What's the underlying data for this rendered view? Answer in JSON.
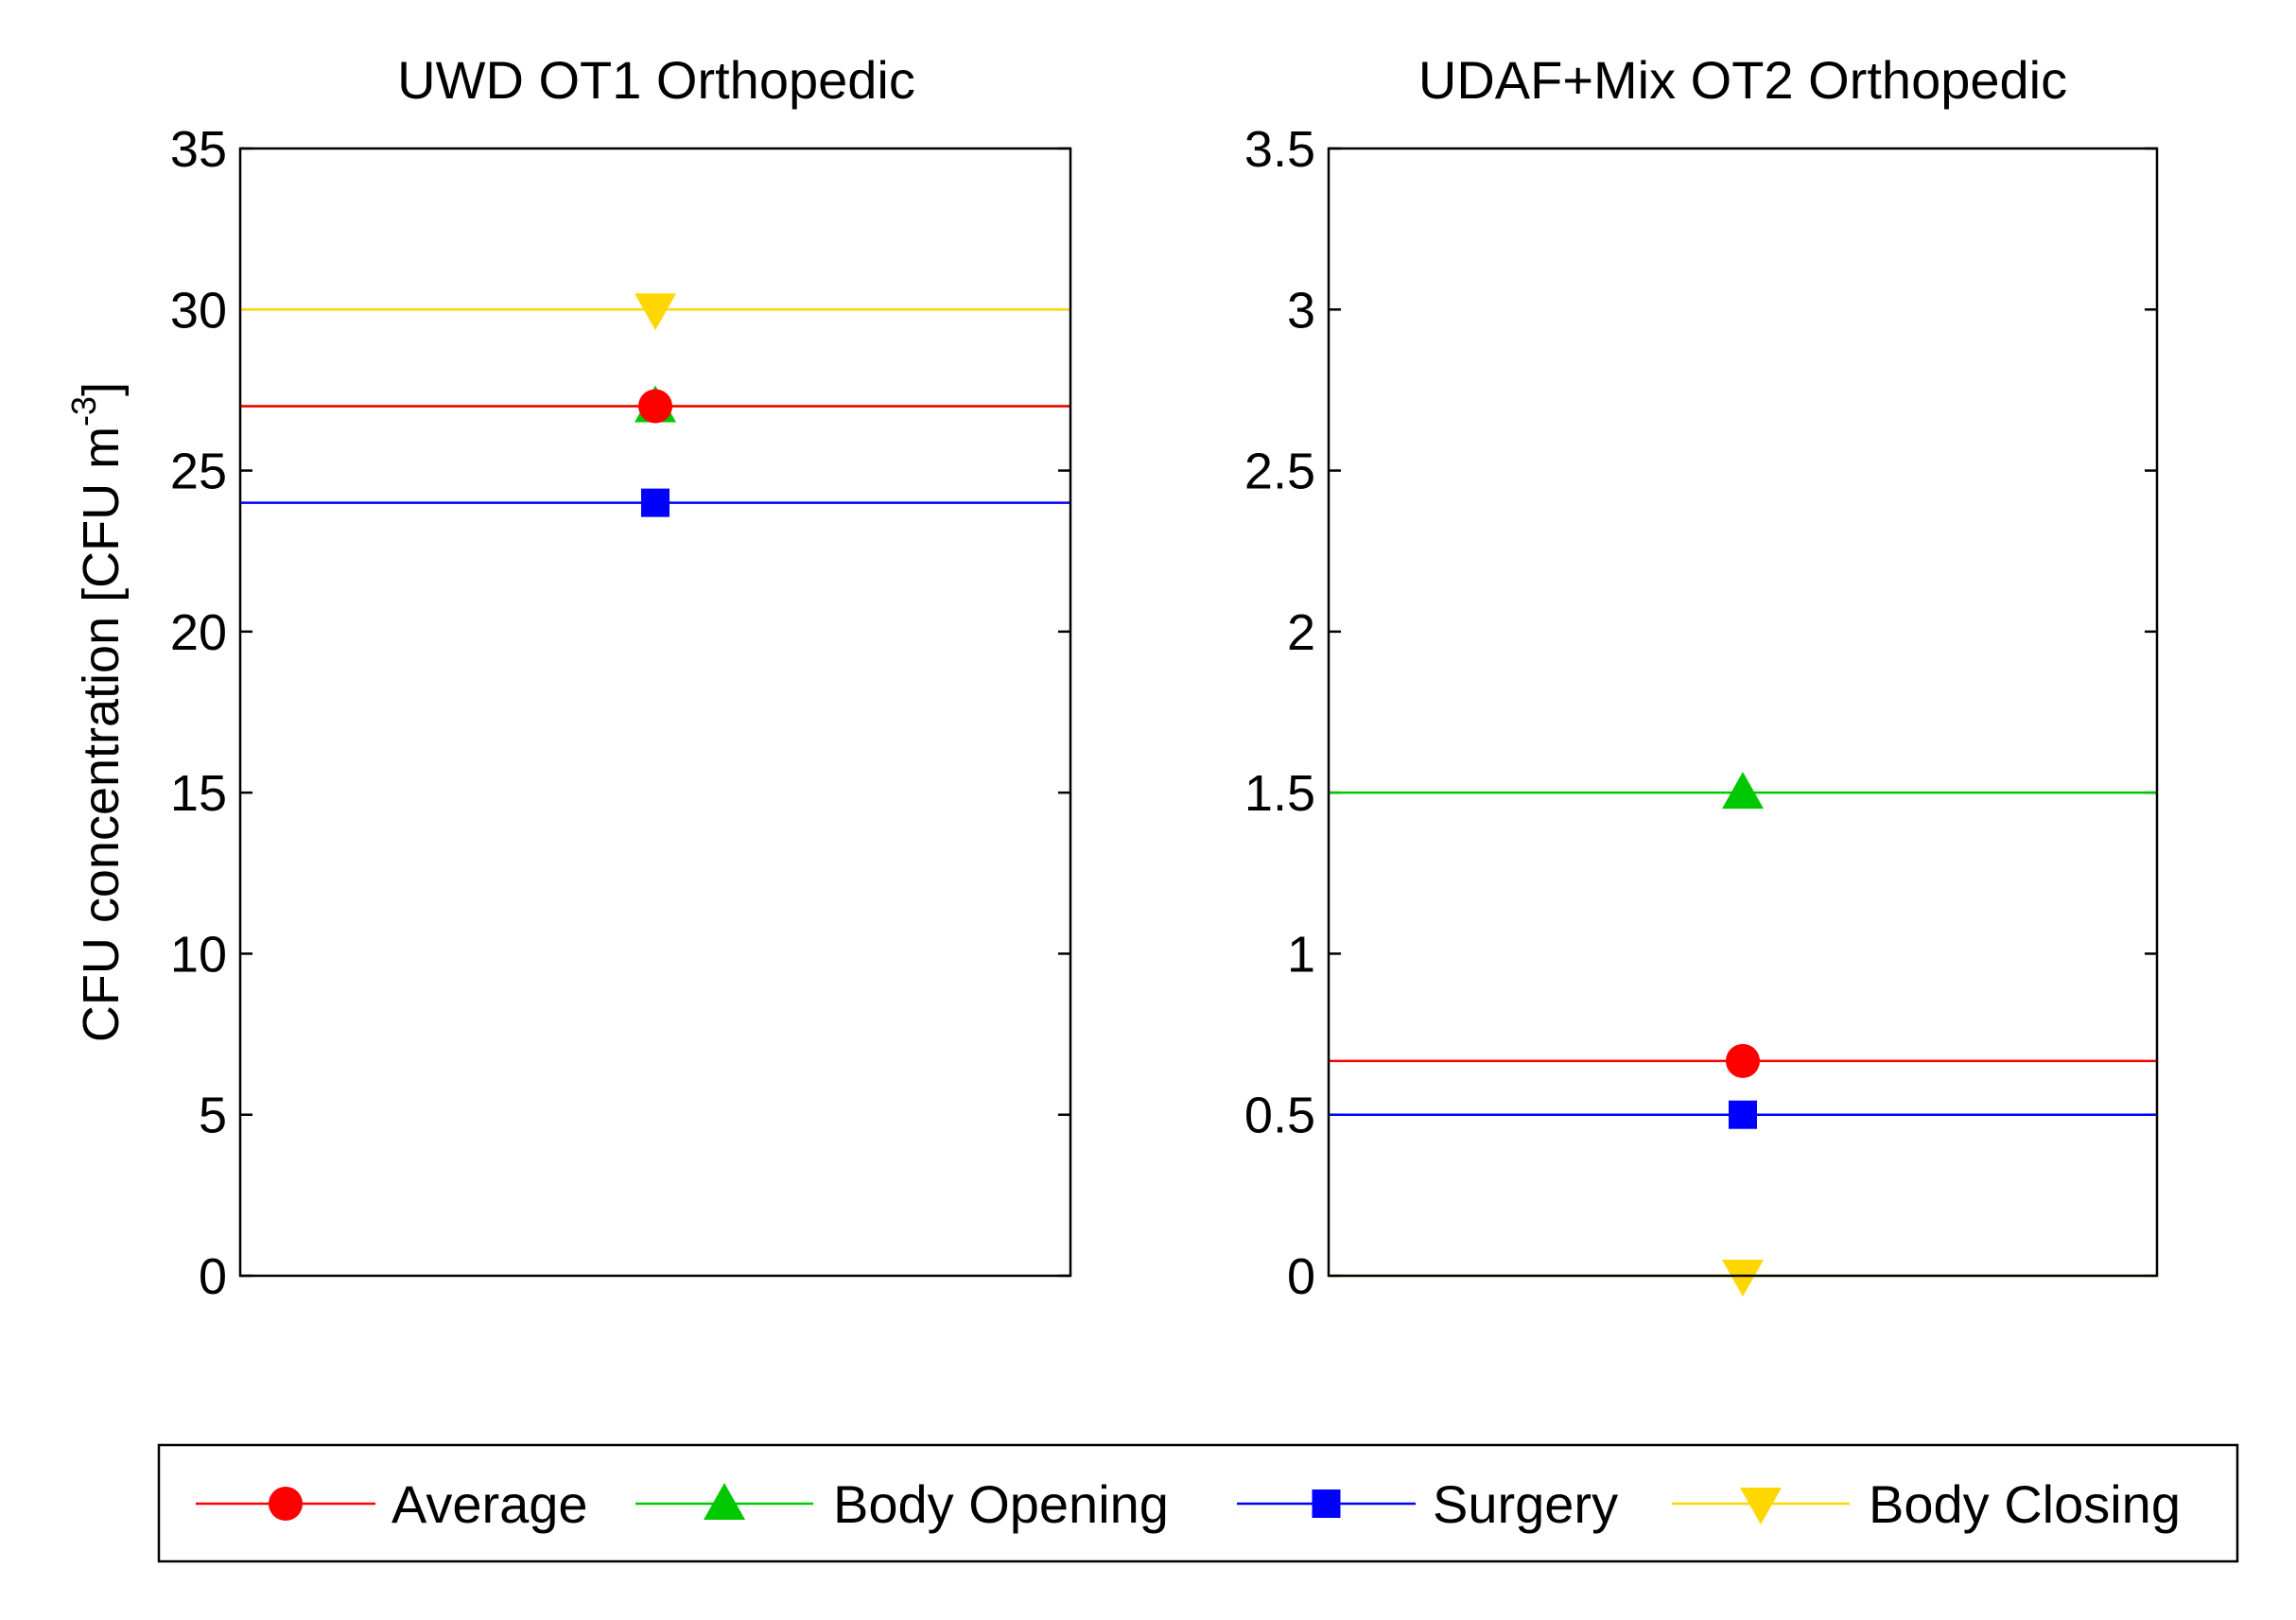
{
  "chart_data": [
    {
      "type": "line",
      "title": "UWD OT1 Orthopedic",
      "ylabel_main": "CFU concentration [CFU m",
      "ylabel_sup": "-3",
      "ylabel_close": "]",
      "ylim": [
        0,
        35
      ],
      "yticks": [
        0,
        5,
        10,
        15,
        20,
        25,
        30,
        35
      ],
      "ytick_labels": [
        "0",
        "5",
        "10",
        "15",
        "20",
        "25",
        "30",
        "35"
      ],
      "series": [
        {
          "name": "Average",
          "value": 27
        },
        {
          "name": "Body Opening",
          "value": 27
        },
        {
          "name": "Surgery",
          "value": 24
        },
        {
          "name": "Body Closing",
          "value": 30
        }
      ]
    },
    {
      "type": "line",
      "title": "UDAF+Mix OT2 Orthopedic",
      "ylim": [
        0,
        3.5
      ],
      "yticks": [
        0,
        0.5,
        1,
        1.5,
        2,
        2.5,
        3,
        3.5
      ],
      "ytick_labels": [
        "0",
        "0.5",
        "1",
        "1.5",
        "2",
        "2.5",
        "3",
        "3.5"
      ],
      "series": [
        {
          "name": "Average",
          "value": 0.667
        },
        {
          "name": "Body Opening",
          "value": 1.5
        },
        {
          "name": "Surgery",
          "value": 0.5
        },
        {
          "name": "Body Closing",
          "value": 0
        }
      ]
    }
  ],
  "legend": {
    "placement": "bottom",
    "entries": [
      {
        "name": "Average",
        "color": "#ff0000",
        "marker": "circle"
      },
      {
        "name": "Body Opening",
        "color": "#00c800",
        "marker": "triangle-up"
      },
      {
        "name": "Surgery",
        "color": "#0000ff",
        "marker": "square"
      },
      {
        "name": "Body Closing",
        "color": "#ffd700",
        "marker": "triangle-down"
      }
    ]
  }
}
